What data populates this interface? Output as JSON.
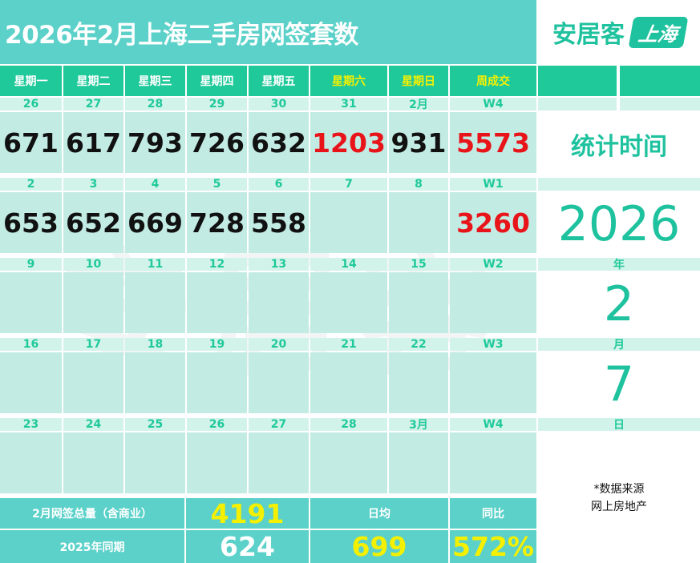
{
  "title": "2026年2月上海二手房网签套数",
  "logo": {
    "name": "安居客",
    "city": "上海"
  },
  "headers": [
    "星期一",
    "星期二",
    "星期三",
    "星期四",
    "星期五",
    "星期六",
    "星期日",
    "周成交"
  ],
  "weeks": [
    {
      "dates": [
        "26",
        "27",
        "28",
        "29",
        "30",
        "31",
        "2月",
        "W4"
      ],
      "values": [
        "671",
        "617",
        "793",
        "726",
        "632",
        "1203",
        "931",
        "5573"
      ]
    },
    {
      "dates": [
        "2",
        "3",
        "4",
        "5",
        "6",
        "7",
        "8",
        "W1"
      ],
      "values": [
        "653",
        "652",
        "669",
        "728",
        "558",
        "",
        "",
        "3260"
      ]
    },
    {
      "dates": [
        "9",
        "10",
        "11",
        "12",
        "13",
        "14",
        "15",
        "W2"
      ],
      "values": [
        "",
        "",
        "",
        "",
        "",
        "",
        "",
        ""
      ]
    },
    {
      "dates": [
        "16",
        "17",
        "18",
        "19",
        "20",
        "21",
        "22",
        "W3"
      ],
      "values": [
        "",
        "",
        "",
        "",
        "",
        "",
        "",
        ""
      ]
    },
    {
      "dates": [
        "23",
        "24",
        "25",
        "26",
        "27",
        "28",
        "3月",
        "W4"
      ],
      "values": [
        "",
        "",
        "",
        "",
        "",
        "",
        "",
        ""
      ]
    }
  ],
  "stat_time": {
    "label": "统计时间",
    "year": "2026",
    "year_unit": "年",
    "month": "2",
    "month_unit": "月",
    "day": "7",
    "day_unit": "日"
  },
  "source": {
    "line1": "*数据来源",
    "line2": "网上房地产"
  },
  "footer": {
    "total_label": "2月网签总量（含商业）",
    "total_value": "4191",
    "daily_avg_label": "日均",
    "yoy_label": "同比",
    "last_year_label": "2025年同期",
    "last_year_value": "624",
    "daily_avg_value": "699",
    "yoy_value": "572%"
  },
  "watermark": "安居客",
  "colors": {
    "teal": "#5bd1c9",
    "green": "#1fc99a",
    "red": "#e8141a",
    "yellow": "#f5f000"
  }
}
